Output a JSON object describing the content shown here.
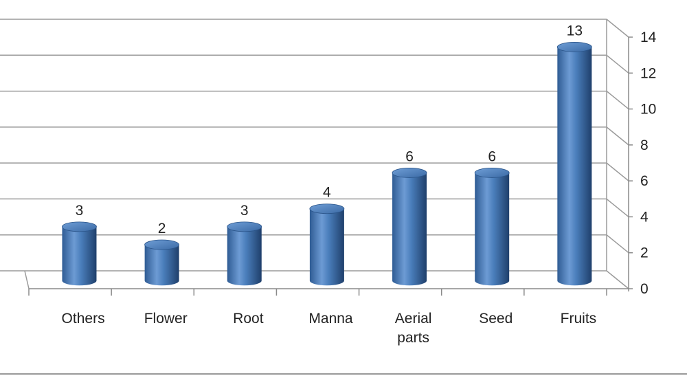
{
  "chart_data": {
    "type": "bar",
    "style": "3d-cylinder",
    "categories": [
      "Others",
      "Flower",
      "Root",
      "Manna",
      "Aerial parts",
      "Seed",
      "Fruits"
    ],
    "category_lines": [
      [
        "Others"
      ],
      [
        "Flower"
      ],
      [
        "Root"
      ],
      [
        "Manna"
      ],
      [
        "Aerial",
        "parts"
      ],
      [
        "Seed"
      ],
      [
        "Fruits"
      ]
    ],
    "values": [
      3,
      2,
      3,
      4,
      6,
      6,
      13
    ],
    "data_labels": [
      "3",
      "2",
      "3",
      "4",
      "6",
      "6",
      "13"
    ],
    "yticks": [
      0,
      2,
      4,
      6,
      8,
      10,
      12,
      14
    ],
    "ytick_labels": [
      "0",
      "2",
      "4",
      "6",
      "8",
      "10",
      "12",
      "14"
    ],
    "ylim": [
      0,
      14
    ],
    "y_axis_position": "right",
    "grid": true,
    "legend": "none",
    "colors": {
      "bar": "#4a7ebb",
      "bar_dark": "#24487a",
      "bar_light": "#8fb4e3",
      "grid": "#9a9a9a",
      "text": "#222222"
    }
  }
}
